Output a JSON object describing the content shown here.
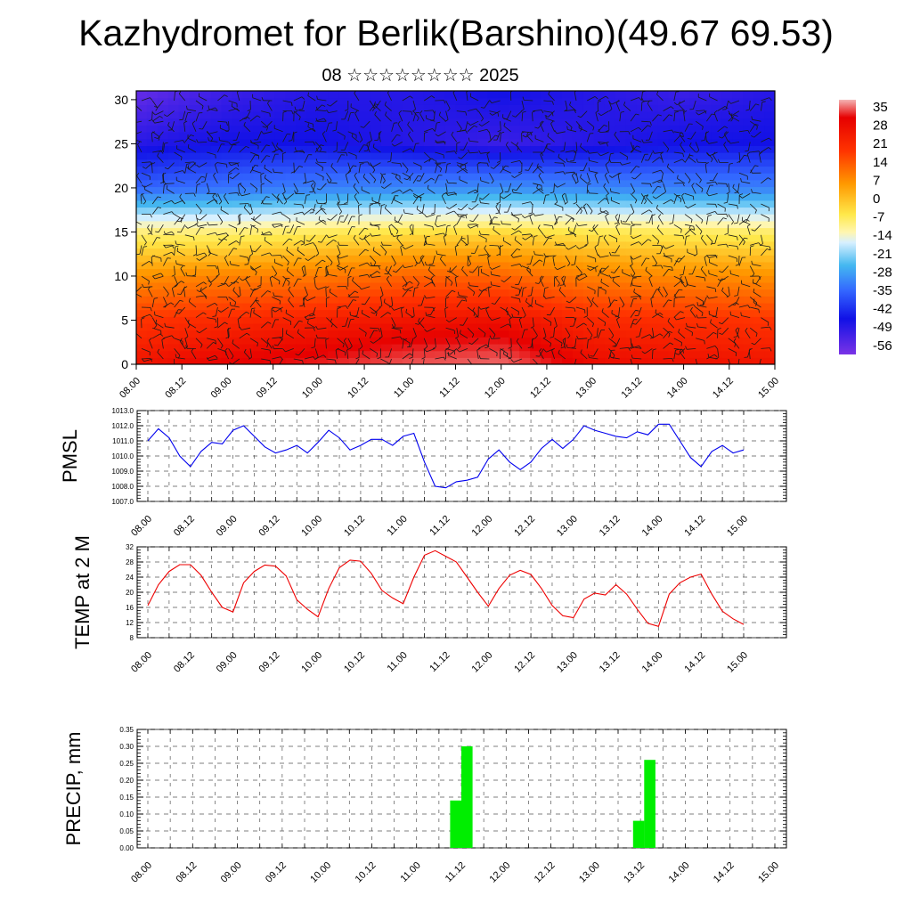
{
  "title": "Kazhydromet for Berlik(Barshino)(49.67 69.53)",
  "subtitle": "08 ☆☆☆☆☆☆☆☆ 2025",
  "time_ticks": [
    "08.00",
    "08.12",
    "09.00",
    "09.12",
    "10.00",
    "10.12",
    "11.00",
    "11.12",
    "12.00",
    "12.12",
    "13.00",
    "13.12",
    "14.00",
    "14.12",
    "15.00"
  ],
  "chart_data": [
    {
      "id": "cross-section",
      "type": "heatmap",
      "title": "",
      "ylim": [
        0,
        31
      ],
      "y_ticks": [
        0,
        5,
        10,
        15,
        20,
        25,
        30
      ],
      "colorbar": {
        "labels": [
          35,
          28,
          21,
          14,
          7,
          0,
          -7,
          -14,
          -21,
          -28,
          -35,
          -42,
          -49,
          -56
        ],
        "range": [
          -60,
          38
        ]
      },
      "temperature_profile": {
        "levels": [
          0,
          5,
          10,
          15,
          20,
          25,
          31
        ],
        "by_time": [
          {
            "x": 0,
            "values": [
              24,
              18,
              6,
              -8,
              -40,
              -52,
              -58
            ]
          },
          {
            "x": 24,
            "values": [
              28,
              20,
              8,
              -8,
              -38,
              -50,
              -54
            ]
          },
          {
            "x": 48,
            "values": [
              30,
              22,
              9,
              -6,
              -36,
              -50,
              -52
            ]
          },
          {
            "x": 72,
            "values": [
              33,
              24,
              12,
              -4,
              -35,
              -52,
              -52
            ]
          },
          {
            "x": 96,
            "values": [
              34,
              25,
              12,
              -3,
              -34,
              -54,
              -50
            ]
          },
          {
            "x": 120,
            "values": [
              26,
              20,
              8,
              -5,
              -35,
              -52,
              -52
            ]
          },
          {
            "x": 144,
            "values": [
              25,
              19,
              7,
              -6,
              -36,
              -50,
              -54
            ]
          },
          {
            "x": 168,
            "values": [
              24,
              18,
              6,
              -7,
              -36,
              -50,
              -52
            ]
          }
        ]
      }
    },
    {
      "id": "pmsl",
      "type": "line",
      "ylabel": "PMSL",
      "ylim": [
        1007,
        1013
      ],
      "y_ticks": [
        "1007.0",
        "1008.0",
        "1009.0",
        "1010.0",
        "1011.0",
        "1012.0",
        "1013.0"
      ],
      "color": "#0000ee",
      "x": [
        0,
        3,
        6,
        9,
        12,
        15,
        18,
        21,
        24,
        27,
        30,
        33,
        36,
        39,
        42,
        45,
        48,
        51,
        54,
        57,
        60,
        63,
        66,
        69,
        72,
        75,
        78,
        81,
        84,
        87,
        90,
        93,
        96,
        99,
        102,
        105,
        108,
        111,
        114,
        117,
        120,
        123,
        126,
        129,
        132,
        135,
        138,
        141,
        144,
        147,
        150,
        153,
        156,
        159,
        162,
        165,
        168
      ],
      "values": [
        1011.0,
        1011.8,
        1011.2,
        1010.0,
        1009.3,
        1010.3,
        1010.9,
        1010.8,
        1011.7,
        1012.0,
        1011.3,
        1010.6,
        1010.2,
        1010.4,
        1010.7,
        1010.2,
        1010.9,
        1011.7,
        1011.2,
        1010.4,
        1010.7,
        1011.1,
        1011.1,
        1010.7,
        1011.3,
        1011.5,
        1009.6,
        1008.0,
        1007.9,
        1008.3,
        1008.4,
        1008.6,
        1009.8,
        1010.4,
        1009.6,
        1009.1,
        1009.6,
        1010.5,
        1011.1,
        1010.5,
        1011.1,
        1012.0,
        1011.7,
        1011.5,
        1011.3,
        1011.2,
        1011.6,
        1011.4,
        1012.1,
        1012.1,
        1011.0,
        1009.9,
        1009.3,
        1010.3,
        1010.7,
        1010.2,
        1010.4
      ]
    },
    {
      "id": "temp2m",
      "type": "line",
      "ylabel": "TEMP at 2 M",
      "ylim": [
        8,
        32
      ],
      "y_ticks": [
        "8",
        "12",
        "16",
        "20",
        "24",
        "28",
        "32"
      ],
      "color": "#ee0000",
      "x": [
        0,
        3,
        6,
        9,
        12,
        15,
        18,
        21,
        24,
        27,
        30,
        33,
        36,
        39,
        42,
        45,
        48,
        51,
        54,
        57,
        60,
        63,
        66,
        69,
        72,
        75,
        78,
        81,
        84,
        87,
        90,
        93,
        96,
        99,
        102,
        105,
        108,
        111,
        114,
        117,
        120,
        123,
        126,
        129,
        132,
        135,
        138,
        141,
        144,
        147,
        150,
        153,
        156,
        159,
        162,
        165,
        168
      ],
      "values": [
        16.5,
        22,
        25.5,
        27.3,
        27.3,
        24.5,
        20,
        16,
        14.8,
        22.5,
        25.5,
        27.2,
        26.9,
        24.3,
        18,
        15.5,
        13.5,
        21,
        26.5,
        28.5,
        28.2,
        25,
        20.5,
        18.5,
        17,
        24,
        29.8,
        31,
        29.5,
        28,
        24,
        20,
        16.3,
        21,
        24.5,
        25.8,
        24.7,
        21,
        16.5,
        13.8,
        13.3,
        18.2,
        19.8,
        19.3,
        22,
        19.5,
        15.5,
        11.8,
        11,
        19.5,
        22.5,
        24,
        24.8,
        19.5,
        15,
        13,
        11.5
      ]
    },
    {
      "id": "precip",
      "type": "bar",
      "ylabel": "PRECIP, mm",
      "ylim": [
        0,
        0.35
      ],
      "y_ticks": [
        "0.00",
        "0.05",
        "0.10",
        "0.15",
        "0.20",
        "0.25",
        "0.30",
        "0.35"
      ],
      "color": "#00ee00",
      "bars": [
        {
          "x": 81,
          "value": 0.14
        },
        {
          "x": 84,
          "value": 0.3
        },
        {
          "x": 130,
          "value": 0.08
        },
        {
          "x": 133,
          "value": 0.26
        }
      ],
      "bar_hours": 3
    }
  ]
}
